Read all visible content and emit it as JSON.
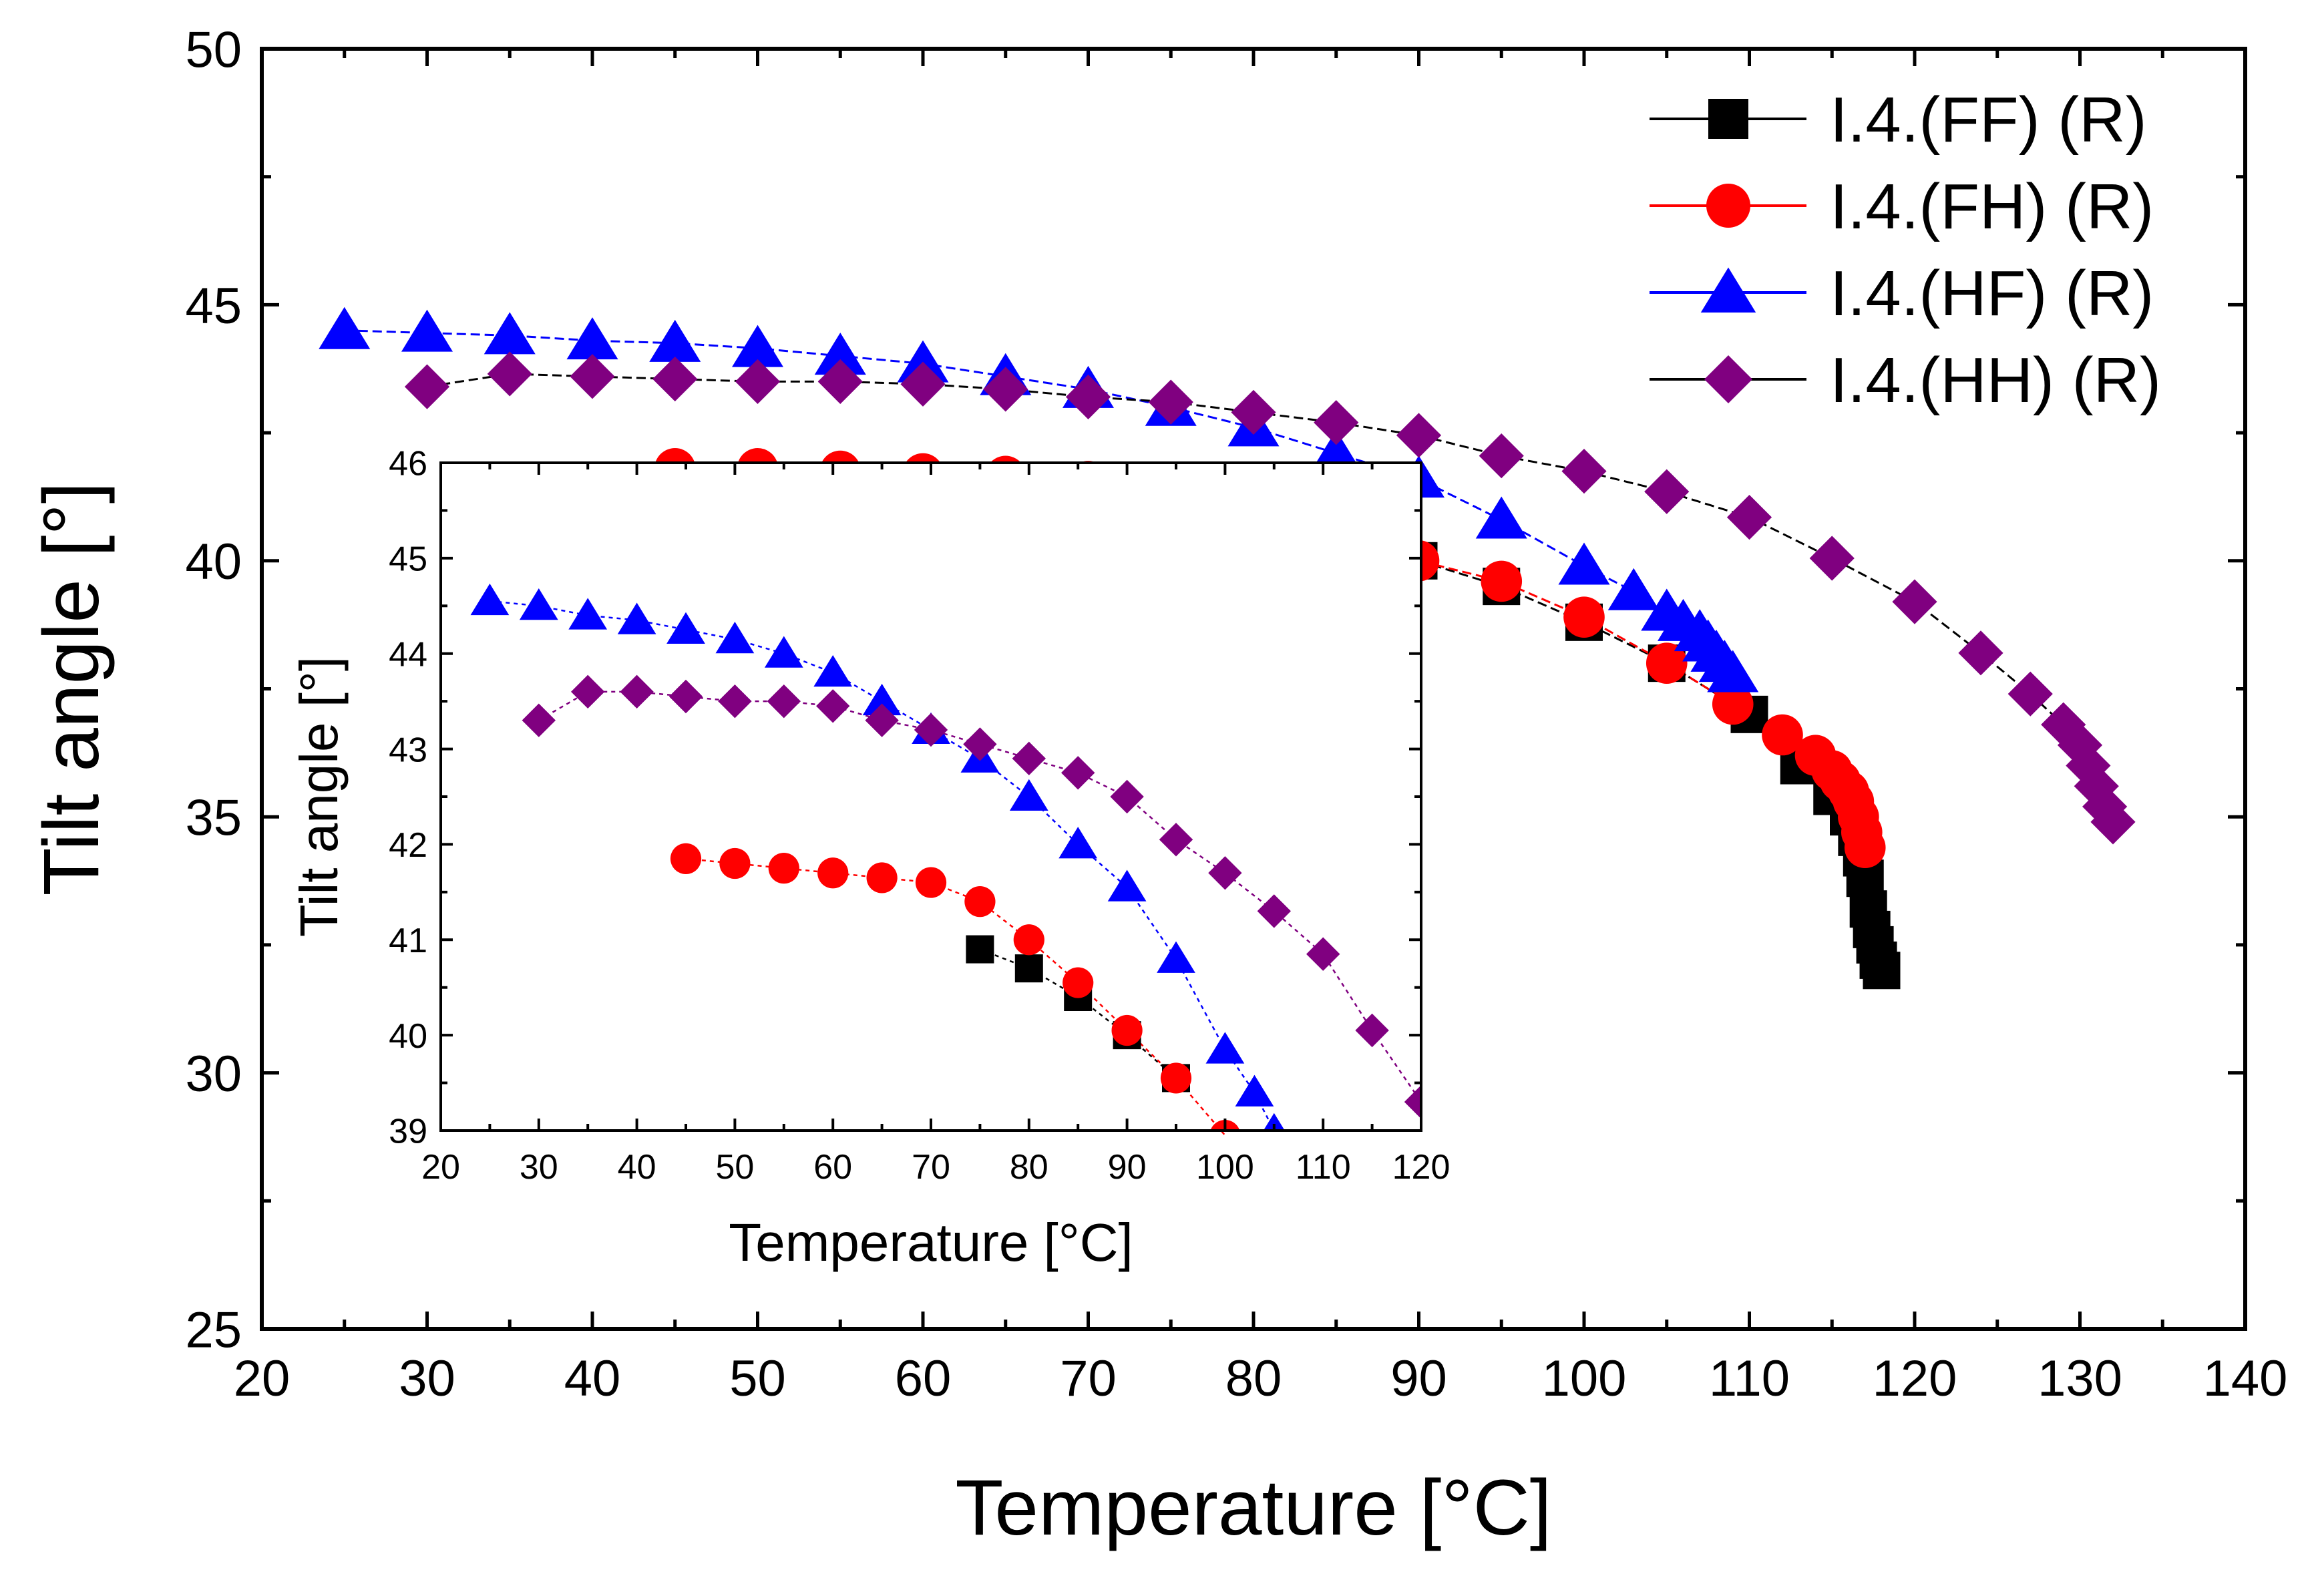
{
  "chart_data": [
    {
      "type": "scatter",
      "panel": "main",
      "xlabel": "Temperature [°C]",
      "ylabel": "Tilt angle [°]",
      "xlim": [
        20,
        140
      ],
      "ylim": [
        25,
        50
      ],
      "xticks": [
        20,
        30,
        40,
        50,
        60,
        70,
        80,
        90,
        100,
        110,
        120,
        130,
        140
      ],
      "yticks": [
        25,
        30,
        35,
        40,
        45,
        50
      ],
      "legend": "top-right",
      "series": [
        {
          "name": "I.4.(FF) (R)",
          "marker": "square",
          "color": "#000000",
          "line_color": "#000000",
          "x": [
            75,
            80,
            85,
            90,
            95,
            100,
            105,
            110,
            113,
            115,
            116,
            116.5,
            116.8,
            117,
            117.2,
            117.4,
            117.6,
            117.8,
            118
          ],
          "y": [
            40.9,
            40.7,
            40.4,
            40.0,
            39.5,
            38.8,
            38.0,
            37.0,
            36.0,
            35.4,
            35.0,
            34.6,
            34.2,
            33.8,
            33.2,
            32.8,
            32.5,
            32.2,
            32.0
          ]
        },
        {
          "name": "I.4.(FH) (R)",
          "marker": "circle",
          "color": "#ff0000",
          "line_color": "#ff0000",
          "x": [
            45,
            50,
            55,
            60,
            65,
            70,
            75,
            80,
            85,
            90,
            95,
            100,
            105,
            109,
            112,
            114,
            115,
            115.5,
            116,
            116.3,
            116.6,
            116.8,
            117
          ],
          "y": [
            41.8,
            41.8,
            41.75,
            41.7,
            41.65,
            41.55,
            41.4,
            41.0,
            40.5,
            40.0,
            39.6,
            38.9,
            38.0,
            37.2,
            36.6,
            36.2,
            35.9,
            35.7,
            35.5,
            35.3,
            35.0,
            34.7,
            34.4
          ]
        },
        {
          "name": "I.4.(HF) (R)",
          "marker": "triangle",
          "color": "#0000ff",
          "line_color": "#0000ff",
          "x": [
            25,
            30,
            35,
            40,
            45,
            50,
            55,
            60,
            65,
            70,
            75,
            80,
            85,
            90,
            95,
            100,
            103,
            105,
            106,
            107,
            107.5,
            108,
            108.5,
            109
          ],
          "y": [
            44.5,
            44.45,
            44.4,
            44.3,
            44.25,
            44.15,
            44.0,
            43.85,
            43.6,
            43.35,
            43.0,
            42.6,
            42.1,
            41.6,
            40.8,
            39.9,
            39.4,
            39.0,
            38.8,
            38.6,
            38.4,
            38.2,
            38.0,
            37.8
          ]
        },
        {
          "name": "I.4.(HH) (R)",
          "marker": "diamond",
          "color": "#800080",
          "line_color": "#000000",
          "x": [
            30,
            35,
            40,
            45,
            50,
            55,
            60,
            65,
            70,
            75,
            80,
            85,
            90,
            95,
            100,
            105,
            110,
            115,
            120,
            124,
            127,
            129,
            130,
            130.5,
            131,
            131.5,
            132
          ],
          "y": [
            43.4,
            43.65,
            43.6,
            43.55,
            43.5,
            43.5,
            43.45,
            43.35,
            43.2,
            43.1,
            42.9,
            42.7,
            42.45,
            42.05,
            41.75,
            41.35,
            40.85,
            40.05,
            39.2,
            38.2,
            37.4,
            36.8,
            36.4,
            36.0,
            35.6,
            35.2,
            34.9
          ]
        }
      ]
    },
    {
      "type": "scatter",
      "panel": "inset",
      "xlabel": "Temperature [°C]",
      "ylabel": "Tilt angle [°]",
      "xlim": [
        20,
        120
      ],
      "ylim": [
        39,
        46
      ],
      "xticks": [
        20,
        30,
        40,
        50,
        60,
        70,
        80,
        90,
        100,
        110,
        120
      ],
      "yticks": [
        39,
        40,
        41,
        42,
        43,
        44,
        45,
        46
      ],
      "series": [
        {
          "name": "I.4.(FF) (R)",
          "marker": "square",
          "color": "#000000",
          "x": [
            75,
            80,
            85,
            90,
            95
          ],
          "y": [
            40.9,
            40.7,
            40.4,
            40.0,
            39.55
          ]
        },
        {
          "name": "I.4.(FH) (R)",
          "marker": "circle",
          "color": "#ff0000",
          "x": [
            45,
            50,
            55,
            60,
            65,
            70,
            75,
            80,
            85,
            90,
            95,
            100
          ],
          "y": [
            41.85,
            41.8,
            41.75,
            41.7,
            41.65,
            41.6,
            41.4,
            41.0,
            40.55,
            40.05,
            39.55,
            38.95
          ]
        },
        {
          "name": "I.4.(HF) (R)",
          "marker": "triangle",
          "color": "#0000ff",
          "x": [
            25,
            30,
            35,
            40,
            45,
            50,
            55,
            60,
            65,
            70,
            75,
            80,
            85,
            90,
            95,
            100,
            103,
            105
          ],
          "y": [
            44.55,
            44.5,
            44.4,
            44.35,
            44.25,
            44.15,
            44.0,
            43.8,
            43.5,
            43.2,
            42.9,
            42.5,
            42.0,
            41.55,
            40.8,
            39.85,
            39.4,
            39.0
          ]
        },
        {
          "name": "I.4.(HH) (R)",
          "marker": "diamond",
          "color": "#800080",
          "x": [
            30,
            35,
            40,
            45,
            50,
            55,
            60,
            65,
            70,
            75,
            80,
            85,
            90,
            95,
            100,
            105,
            110,
            115,
            120
          ],
          "y": [
            43.3,
            43.6,
            43.6,
            43.55,
            43.5,
            43.5,
            43.45,
            43.3,
            43.2,
            43.05,
            42.9,
            42.75,
            42.5,
            42.05,
            41.7,
            41.3,
            40.85,
            40.05,
            39.3
          ]
        }
      ]
    }
  ]
}
